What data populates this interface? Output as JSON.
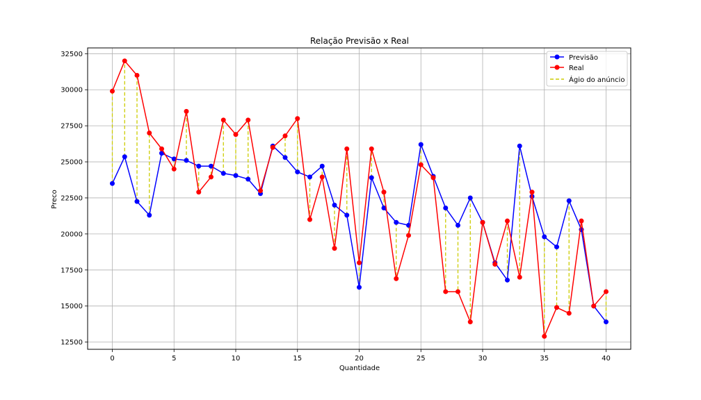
{
  "chart_data": {
    "type": "line",
    "title": "Relação Previsão x Real",
    "xlabel": "Quantidade",
    "ylabel": "Preco",
    "xlim": [
      -2,
      42
    ],
    "ylim": [
      12000,
      32900
    ],
    "xticks": [
      0,
      5,
      10,
      15,
      20,
      25,
      30,
      35,
      40
    ],
    "yticks": [
      12500,
      15000,
      17500,
      20000,
      22500,
      25000,
      27500,
      30000,
      32500
    ],
    "grid": true,
    "legend_position": "top-right",
    "x": [
      0,
      1,
      2,
      3,
      4,
      5,
      6,
      7,
      8,
      9,
      10,
      11,
      12,
      13,
      14,
      15,
      16,
      17,
      18,
      19,
      20,
      21,
      22,
      23,
      24,
      25,
      26,
      27,
      28,
      29,
      30,
      31,
      32,
      33,
      34,
      35,
      36,
      37,
      38,
      39,
      40
    ],
    "series": [
      {
        "name": "Previsão",
        "color": "#0000ff",
        "values": [
          23500,
          25350,
          22250,
          21300,
          25600,
          25200,
          25100,
          24700,
          24700,
          24200,
          24050,
          23800,
          22800,
          26100,
          25300,
          24300,
          23950,
          24700,
          22000,
          21300,
          16300,
          23900,
          21800,
          20800,
          20600,
          26200,
          24000,
          21800,
          20600,
          22500,
          20800,
          18000,
          16800,
          26100,
          22600,
          19800,
          19100,
          22300,
          20300,
          15000,
          13900
        ]
      },
      {
        "name": "Real",
        "color": "#ff0000",
        "values": [
          29900,
          32000,
          31000,
          27000,
          25900,
          24500,
          28500,
          22900,
          23950,
          27900,
          26900,
          27900,
          23000,
          26000,
          26800,
          28000,
          21000,
          23950,
          19000,
          25900,
          18000,
          25900,
          22900,
          16900,
          19900,
          24800,
          23900,
          16000,
          16000,
          13900,
          20800,
          17900,
          20900,
          17000,
          22900,
          12900,
          14900,
          14500,
          20900,
          15000,
          16000
        ]
      }
    ],
    "difference_series": {
      "name": "Ágio do anúncio",
      "color": "#cccc00",
      "style": "dashed"
    }
  }
}
